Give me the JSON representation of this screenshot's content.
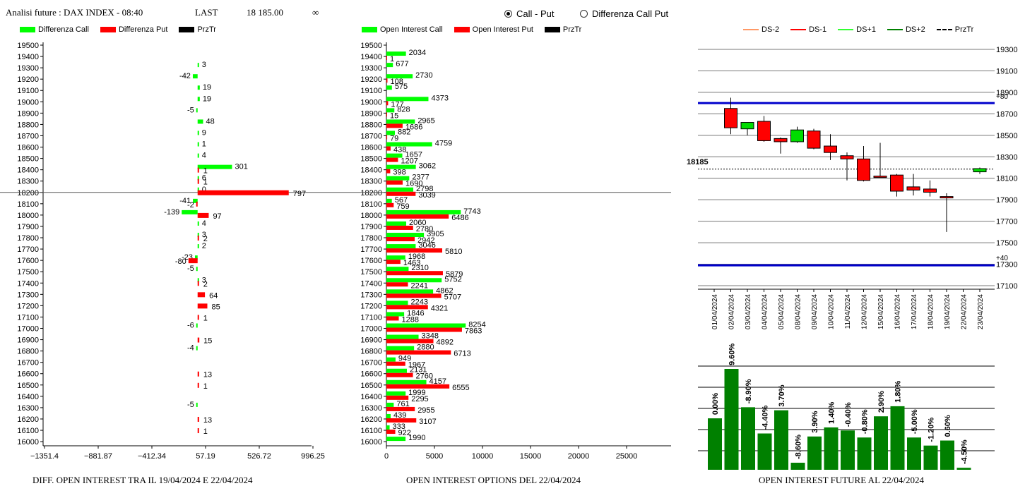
{
  "header": {
    "title": "Analisi future : DAX INDEX - 08:40",
    "last_label": "LAST",
    "last_value": "18 185.00",
    "infinity": "∞"
  },
  "mode": {
    "options": [
      "Call - Put",
      "Differenza Call Put"
    ],
    "selected": "Call - Put"
  },
  "colors": {
    "call": "#00ff00",
    "put": "#ff0000",
    "przTr": "#000000",
    "future_bar": "#008000",
    "ds_line": "#0000cc",
    "ds_minus2": "#ff9966",
    "ds_minus1": "#ff0000",
    "ds_plus1": "#33ff33",
    "ds_plus2": "#008000"
  },
  "captions": {
    "left": "DIFF. OPEN INTEREST TRA IL 19/04/2024 E 22/04/2024",
    "middle": "OPEN INTEREST OPTIONS DEL 22/04/2024",
    "right": "OPEN INTEREST FUTURE AL 22/04/2024"
  },
  "chart_data": [
    {
      "type": "bar",
      "orientation": "horizontal",
      "legend": [
        "Differenza Call",
        "Differenza Put",
        "PrzTr"
      ],
      "strikes": [
        19500,
        19400,
        19300,
        19200,
        19100,
        19000,
        18900,
        18800,
        18700,
        18600,
        18500,
        18400,
        18300,
        18200,
        18100,
        18000,
        17900,
        17800,
        17700,
        17600,
        17500,
        17400,
        17300,
        17200,
        17100,
        17000,
        16900,
        16800,
        16700,
        16600,
        16500,
        16400,
        16300,
        16200,
        16100,
        16000
      ],
      "call_diff": [
        null,
        null,
        3,
        -42,
        19,
        19,
        -5,
        48,
        9,
        1,
        4,
        301,
        6,
        0,
        -41,
        -139,
        4,
        3,
        2,
        -23,
        -5,
        3,
        null,
        null,
        null,
        -6,
        null,
        -4,
        null,
        null,
        null,
        null,
        -5,
        null,
        null,
        null
      ],
      "put_diff": [
        null,
        null,
        null,
        null,
        null,
        null,
        null,
        null,
        null,
        null,
        null,
        1,
        1,
        797,
        -2,
        97,
        null,
        2,
        null,
        -80,
        null,
        2,
        64,
        85,
        1,
        null,
        15,
        null,
        null,
        13,
        1,
        null,
        null,
        13,
        1,
        null
      ],
      "price_line": 18200,
      "x_ticks": [
        "−1351.4",
        "−881.87",
        "−412.34",
        "57.19",
        "526.72",
        "996.25"
      ],
      "xlim": [
        -1351.4,
        996.25
      ]
    },
    {
      "type": "bar",
      "orientation": "horizontal",
      "legend": [
        "Open Interest Call",
        "Open Interest Put",
        "PrzTr"
      ],
      "strikes": [
        19500,
        19400,
        19300,
        19200,
        19100,
        19000,
        18900,
        18800,
        18700,
        18600,
        18500,
        18400,
        18300,
        18200,
        18100,
        18000,
        17900,
        17800,
        17700,
        17600,
        17500,
        17400,
        17300,
        17200,
        17100,
        17000,
        16900,
        16800,
        16700,
        16600,
        16500,
        16400,
        16300,
        16200,
        16100,
        16000
      ],
      "call_oi": [
        null,
        2034,
        677,
        2730,
        575,
        4373,
        828,
        2965,
        882,
        4759,
        1657,
        3062,
        2377,
        2798,
        567,
        7743,
        2060,
        3905,
        3046,
        1968,
        2310,
        5752,
        4862,
        2243,
        1846,
        8254,
        3348,
        2880,
        949,
        2131,
        4157,
        1999,
        761,
        439,
        333,
        1990
      ],
      "put_oi": [
        null,
        1,
        null,
        108,
        null,
        177,
        15,
        1686,
        79,
        438,
        1207,
        398,
        1690,
        3039,
        759,
        6486,
        2780,
        2942,
        5810,
        1463,
        5879,
        2241,
        5707,
        4321,
        1288,
        7863,
        4892,
        6713,
        1967,
        2760,
        6555,
        2295,
        2955,
        3107,
        922,
        null
      ],
      "price_line": 18200,
      "x_ticks": [
        "0",
        "5000",
        "10000",
        "15000",
        "20000",
        "25000"
      ],
      "xlim": [
        0,
        30000
      ]
    },
    {
      "type": "candlestick",
      "legend": [
        "DS-2",
        "DS-1",
        "DS+1",
        "DS+2",
        "PrzTr"
      ],
      "dates": [
        "01/04/2024",
        "02/04/2024",
        "03/04/2024",
        "04/04/2024",
        "05/04/2024",
        "08/04/2024",
        "09/04/2024",
        "10/04/2024",
        "11/04/2024",
        "12/04/2024",
        "15/04/2024",
        "16/04/2024",
        "17/04/2024",
        "18/04/2024",
        "19/04/2024",
        "22/04/2024",
        "23/04/2024"
      ],
      "ohlc": [
        null,
        {
          "o": 18750,
          "h": 18850,
          "l": 18510,
          "c": 18570
        },
        {
          "o": 18560,
          "h": 18620,
          "l": 18500,
          "c": 18620
        },
        {
          "o": 18630,
          "h": 18680,
          "l": 18440,
          "c": 18450
        },
        {
          "o": 18470,
          "h": 18480,
          "l": 18330,
          "c": 18440
        },
        {
          "o": 18440,
          "h": 18580,
          "l": 18430,
          "c": 18550
        },
        {
          "o": 18540,
          "h": 18560,
          "l": 18370,
          "c": 18380
        },
        {
          "o": 18400,
          "h": 18510,
          "l": 18270,
          "c": 18340
        },
        {
          "o": 18310,
          "h": 18340,
          "l": 18080,
          "c": 18280
        },
        {
          "o": 18280,
          "h": 18400,
          "l": 18070,
          "c": 18080
        },
        {
          "o": 18120,
          "h": 18430,
          "l": 18110,
          "c": 18110
        },
        {
          "o": 18130,
          "h": 18140,
          "l": 17930,
          "c": 17980
        },
        {
          "o": 18020,
          "h": 18140,
          "l": 17940,
          "c": 17990
        },
        {
          "o": 18000,
          "h": 18080,
          "l": 17930,
          "c": 17970
        },
        {
          "o": 17930,
          "h": 17960,
          "l": 17600,
          "c": 17920
        },
        null,
        {
          "o": 18160,
          "h": 18200,
          "l": 18140,
          "c": 18190
        }
      ],
      "y_ticks": [
        19300,
        19100,
        18900,
        18700,
        18500,
        18300,
        18100,
        17900,
        17700,
        17500,
        17300,
        17100
      ],
      "ylim": [
        17100,
        19300
      ],
      "upper_level": 18800,
      "upper_label": "+80",
      "lower_level": 17290,
      "lower_label": "+40",
      "last_price": 18185,
      "last_label": "18185"
    },
    {
      "type": "bar",
      "values": [
        0.0,
        9.6,
        -8.9,
        -4.4,
        3.7,
        -8.6,
        3.9,
        1.4,
        -0.4,
        -0.8,
        2.9,
        1.8,
        -5.0,
        -1.2,
        0.6,
        -4.5
      ],
      "labels": [
        "0.00%",
        "9.60%",
        "-8.90%",
        "-4.40%",
        "3.70%",
        "-8.60%",
        "3.90%",
        "1.40%",
        "-0.40%",
        "-0.80%",
        "2.90%",
        "1.80%",
        "-5.00%",
        "-1.20%",
        "0.60%",
        "-4.50%"
      ],
      "open_interest_relative": [
        0.51,
        1.0,
        0.62,
        0.36,
        0.59,
        0.07,
        0.33,
        0.42,
        0.39,
        0.32,
        0.53,
        0.63,
        0.32,
        0.24,
        0.29,
        0.02
      ]
    }
  ]
}
